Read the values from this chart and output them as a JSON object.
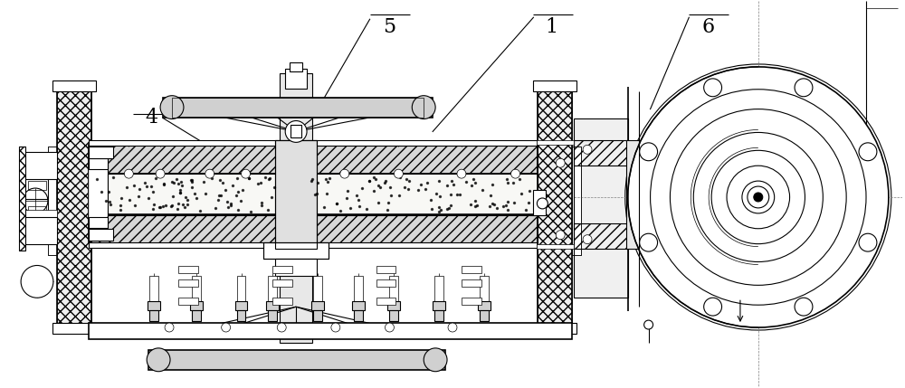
{
  "bg_color": "#ffffff",
  "line_color": "#000000",
  "label_fontsize": 16,
  "figsize": [
    10.0,
    4.29
  ],
  "dpi": 100
}
